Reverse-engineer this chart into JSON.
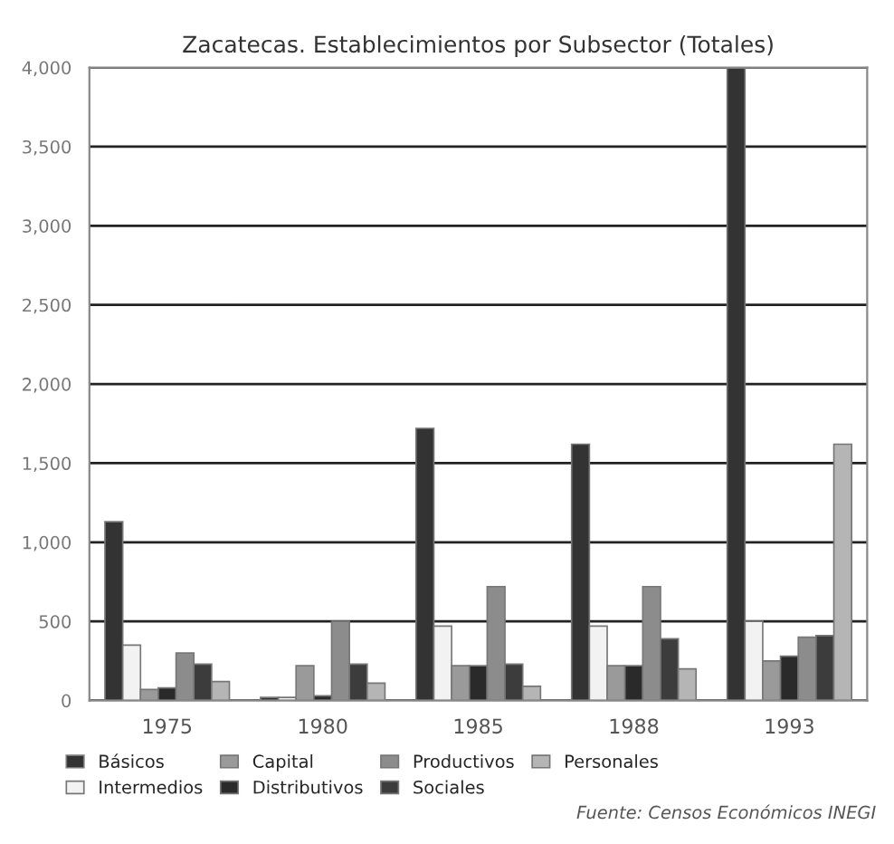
{
  "chart_data": {
    "type": "bar",
    "title": "Zacatecas. Establecimientos por Subsector (Totales)",
    "categories": [
      "1975",
      "1980",
      "1985",
      "1988",
      "1993"
    ],
    "series": [
      {
        "name": "Básicos",
        "color": "#333333",
        "values": [
          1130,
          20,
          1720,
          1620,
          4000
        ]
      },
      {
        "name": "Intermedios",
        "color": "#f2f2f2",
        "values": [
          350,
          20,
          470,
          470,
          500
        ]
      },
      {
        "name": "Capital",
        "color": "#9a9a9a",
        "values": [
          70,
          220,
          220,
          220,
          250
        ]
      },
      {
        "name": "Distributivos",
        "color": "#2a2a2a",
        "values": [
          80,
          30,
          220,
          220,
          280
        ]
      },
      {
        "name": "Productivos",
        "color": "#8c8c8c",
        "values": [
          300,
          500,
          720,
          720,
          400
        ]
      },
      {
        "name": "Sociales",
        "color": "#3c3c3c",
        "values": [
          230,
          230,
          230,
          390,
          410
        ]
      },
      {
        "name": "Personales",
        "color": "#b5b5b5",
        "values": [
          120,
          110,
          90,
          200,
          1620
        ]
      }
    ],
    "ylim": [
      0,
      4000
    ],
    "yticks": [
      0,
      500,
      {
        "value": 1000,
        "label": "1,000"
      },
      {
        "value": 1500,
        "label": "1,500"
      },
      {
        "value": 2000,
        "label": "2,000"
      },
      {
        "value": 2500,
        "label": "2,500"
      },
      {
        "value": 3000,
        "label": "3,000"
      },
      {
        "value": 3500,
        "label": "3,500"
      },
      {
        "value": 4000,
        "label": "4,000"
      }
    ],
    "grid": "y",
    "legend": "bottom",
    "annotations": [
      "Fuente: Censos Económicos INEGI"
    ]
  }
}
